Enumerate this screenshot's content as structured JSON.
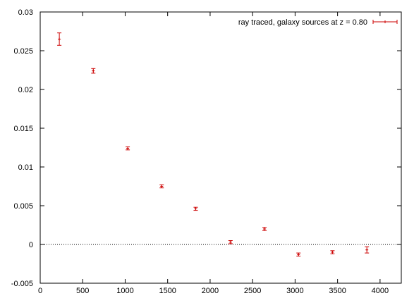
{
  "chart_data": {
    "type": "scatter",
    "title": "",
    "xlabel": "",
    "ylabel": "",
    "xlim": [
      0,
      4250
    ],
    "ylim": [
      -0.005,
      0.03
    ],
    "x_ticks": [
      0,
      500,
      1000,
      1500,
      2000,
      2500,
      3000,
      3500,
      4000
    ],
    "x_tick_labels": [
      "0",
      "500",
      "1000",
      "1500",
      "2000",
      "2500",
      "3000",
      "3500",
      "4000"
    ],
    "y_ticks": [
      -0.005,
      0,
      0.005,
      0.01,
      0.015,
      0.02,
      0.025,
      0.03
    ],
    "y_tick_labels": [
      "-0.005",
      "0",
      "0.005",
      "0.01",
      "0.015",
      "0.02",
      "0.025",
      "0.03"
    ],
    "zero_line": {
      "y": 0,
      "style": "dotted"
    },
    "grid": false,
    "legend_position": "top-right",
    "series": [
      {
        "name": "ray traced, galaxy sources at z = 0.80",
        "color": "#cc0000",
        "marker": "errorbar",
        "points": [
          {
            "x": 225,
            "y": 0.0265,
            "err": 0.0008
          },
          {
            "x": 625,
            "y": 0.0224,
            "err": 0.0003
          },
          {
            "x": 1030,
            "y": 0.0124,
            "err": 0.0002
          },
          {
            "x": 1430,
            "y": 0.0075,
            "err": 0.0002
          },
          {
            "x": 1830,
            "y": 0.0046,
            "err": 0.0002
          },
          {
            "x": 2240,
            "y": 0.0003,
            "err": 0.0002
          },
          {
            "x": 2640,
            "y": 0.002,
            "err": 0.0002
          },
          {
            "x": 3040,
            "y": -0.0013,
            "err": 0.0002
          },
          {
            "x": 3440,
            "y": -0.001,
            "err": 0.0002
          },
          {
            "x": 3845,
            "y": -0.0007,
            "err": 0.0004
          }
        ]
      }
    ]
  }
}
